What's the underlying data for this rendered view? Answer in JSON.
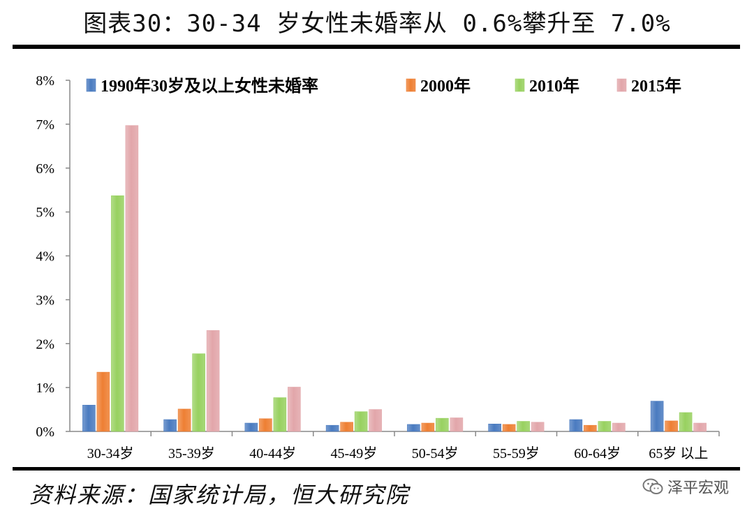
{
  "title": "图表30：30-34 岁女性未婚率从 0.6%攀升至 7.0%",
  "source": "资料来源：国家统计局，恒大研究院",
  "watermark": "泽平宏观",
  "colors": {
    "series": [
      "#4a7bc0",
      "#ee7f33",
      "#98d160",
      "#e2a6aa"
    ]
  },
  "chart_data": {
    "type": "bar",
    "categories": [
      "30-34岁",
      "35-39岁",
      "40-44岁",
      "45-49岁",
      "50-54岁",
      "55-59岁",
      "60-64岁",
      "65岁 以上"
    ],
    "series": [
      {
        "name": "1990年30岁及以上女性未婚率",
        "values": [
          0.6,
          0.27,
          0.19,
          0.14,
          0.16,
          0.17,
          0.27,
          0.69
        ]
      },
      {
        "name": "2000年",
        "values": [
          1.35,
          0.51,
          0.29,
          0.21,
          0.19,
          0.16,
          0.14,
          0.24
        ]
      },
      {
        "name": "2010年",
        "values": [
          5.37,
          1.77,
          0.77,
          0.45,
          0.3,
          0.23,
          0.23,
          0.43
        ]
      },
      {
        "name": "2015年",
        "values": [
          6.97,
          2.3,
          1.01,
          0.5,
          0.31,
          0.21,
          0.19,
          0.19
        ]
      }
    ],
    "ylim": [
      0,
      8
    ],
    "yticks": [
      "0%",
      "1%",
      "2%",
      "3%",
      "4%",
      "5%",
      "6%",
      "7%",
      "8%"
    ],
    "legend_position": "top",
    "grid": false
  }
}
